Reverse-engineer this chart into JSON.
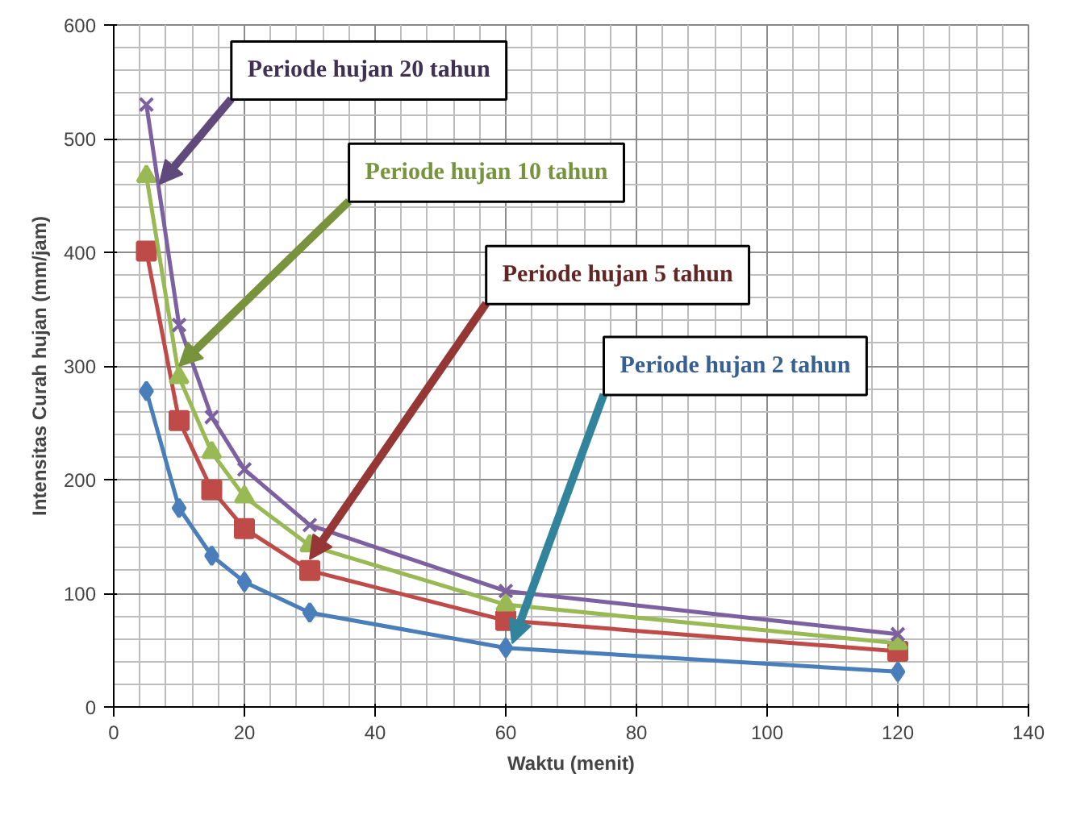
{
  "chart_data": {
    "type": "line",
    "xlabel": "Waktu (menit)",
    "ylabel": "Intensitas Curah hujan (mm/jam)",
    "x": [
      5,
      10,
      15,
      20,
      30,
      60,
      120
    ],
    "series": [
      {
        "name": "Periode hujan 2 tahun",
        "color": "#4a7ebb",
        "marker": "diamond",
        "values": [
          278,
          175,
          133,
          110,
          83,
          52,
          31
        ]
      },
      {
        "name": "Periode hujan 5 tahun",
        "color": "#be4b48",
        "marker": "square",
        "values": [
          401,
          252,
          191,
          157,
          120,
          76,
          49
        ]
      },
      {
        "name": "Periode hujan 10 tahun",
        "color": "#98b954",
        "marker": "triangle",
        "values": [
          467,
          290,
          224,
          185,
          142,
          90,
          56
        ]
      },
      {
        "name": "Periode hujan 20 tahun",
        "color": "#7d60a0",
        "marker": "cross",
        "values": [
          530,
          336,
          255,
          209,
          160,
          102,
          64
        ]
      }
    ],
    "xlim": [
      0,
      140
    ],
    "ylim": [
      0,
      600
    ],
    "xticks": [
      0,
      20,
      40,
      60,
      80,
      100,
      120,
      140
    ],
    "yticks": [
      0,
      100,
      200,
      300,
      400,
      500,
      600
    ],
    "grid": true,
    "legend": false
  }
}
